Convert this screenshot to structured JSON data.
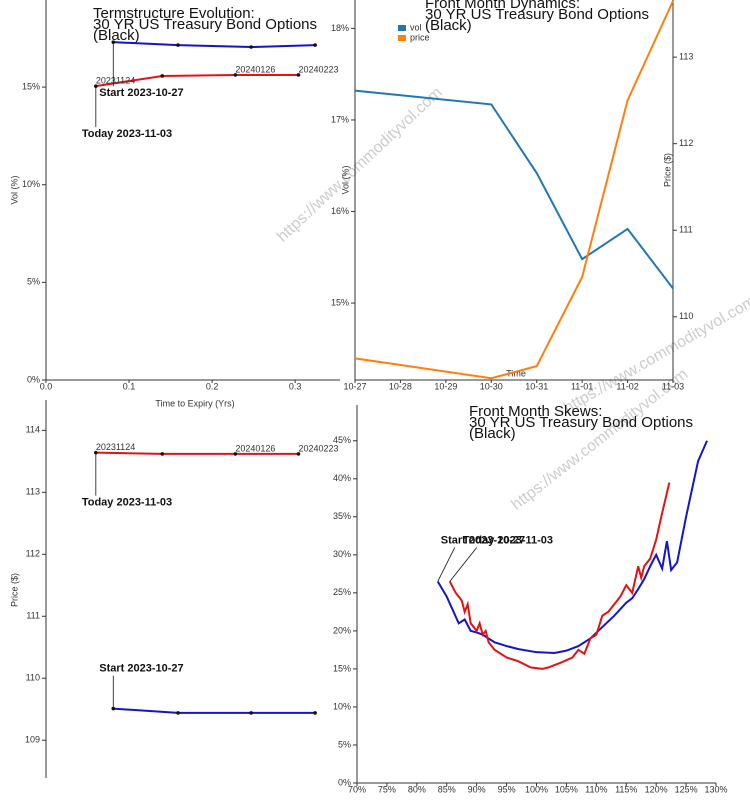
{
  "watermark": "https://www.commodityvol.com",
  "chart_data": [
    {
      "type": "line",
      "title": [
        "Termstructure Evolution:",
        "30 YR US Treasury Bond Options",
        "(Black)"
      ],
      "xlabel": "Time to Expiry (Yrs)",
      "ylabel": "Vol (%)",
      "xlim": [
        0,
        0.354
      ],
      "ylim": [
        0,
        19.46
      ],
      "xticks": [
        {
          "value": 0,
          "label": "0.0"
        },
        0.1,
        0.2,
        0.3
      ],
      "yticks": [
        {
          "value": 0,
          "label": "0%"
        },
        {
          "value": 5,
          "label": "5%"
        },
        {
          "value": 10,
          "label": "10%"
        },
        {
          "value": 15,
          "label": "15%"
        }
      ],
      "markers": true,
      "series": [
        {
          "color": "#1414c8",
          "x": [
            0.081,
            0.159,
            0.247,
            0.324
          ],
          "values": [
            17.3,
            17.15,
            17.05,
            17.15
          ]
        },
        {
          "color": "#e01414",
          "x": [
            0.06,
            0.14,
            0.228,
            0.304
          ],
          "values": [
            15.05,
            15.57,
            15.62,
            15.62
          ],
          "labels": [
            "20231124",
            null,
            "20240126",
            "20240223"
          ]
        }
      ],
      "annotations": [
        {
          "text": "Start 2023-10-27",
          "x": 0.081,
          "y": 17.3
        },
        {
          "text": "Today 2023-11-03",
          "x": 0.06,
          "y": 15.05
        }
      ]
    },
    {
      "type": "line",
      "title": [
        "Front Month Dynamics:",
        "30 YR US Treasury Bond Options",
        "(Black)"
      ],
      "xlabel": "Time",
      "ylabel": "Vol (%)",
      "y2label": "Price ($)",
      "xticks": [
        "10-27",
        "10-28",
        "10-29",
        "10-30",
        "10-31",
        "11-01",
        "11-02",
        "11-03"
      ],
      "x": [
        "10-27",
        "10-30",
        "10-31",
        "11-01",
        "11-02",
        "11-03"
      ],
      "ylim": [
        14.16,
        18.31
      ],
      "y2lim": [
        109.27,
        113.66
      ],
      "yticks": [
        {
          "value": 15,
          "label": "15%"
        },
        {
          "value": 16,
          "label": "16%"
        },
        {
          "value": 17,
          "label": "17%"
        },
        {
          "value": 18,
          "label": "18%"
        }
      ],
      "y2ticks": [
        110,
        111,
        112,
        113
      ],
      "legend": "upper left",
      "series": [
        {
          "name": "vol",
          "color": "#1f77b4",
          "values": [
            17.32,
            17.17,
            16.42,
            15.48,
            15.81,
            15.16
          ]
        },
        {
          "name": "price",
          "color": "#ff7f0e",
          "axis": "y2",
          "values": [
            109.52,
            109.29,
            109.43,
            110.46,
            112.5,
            113.65
          ]
        }
      ]
    },
    {
      "type": "line",
      "ylabel": "Price ($)",
      "xlim": [
        0,
        0.354
      ],
      "ylim": [
        108.39,
        114.49
      ],
      "yticks": [
        109,
        110,
        111,
        112,
        113,
        114
      ],
      "markers": true,
      "series": [
        {
          "color": "#e01414",
          "x": [
            0.06,
            0.14,
            0.228,
            0.304
          ],
          "values": [
            113.64,
            113.62,
            113.62,
            113.62
          ],
          "labels": [
            "20231124",
            null,
            "20240126",
            "20240223"
          ]
        },
        {
          "color": "#1414c8",
          "x": [
            0.081,
            0.159,
            0.247,
            0.324
          ],
          "values": [
            109.51,
            109.44,
            109.44,
            109.44
          ]
        }
      ],
      "annotations": [
        {
          "text": "Start 2023-10-27",
          "x": 0.081,
          "y": 109.51
        },
        {
          "text": "Today 2023-11-03",
          "x": 0.06,
          "y": 113.64
        }
      ]
    },
    {
      "type": "line",
      "title": [
        "Front Month Skews:",
        "30 YR US Treasury Bond Options",
        "(Black)"
      ],
      "xlim": [
        70,
        130
      ],
      "ylim": [
        0,
        49.7
      ],
      "xticks": [
        {
          "value": 70,
          "label": "70%"
        },
        {
          "value": 75,
          "label": "75%"
        },
        {
          "value": 80,
          "label": "80%"
        },
        {
          "value": 85,
          "label": "85%"
        },
        {
          "value": 90,
          "label": "90%"
        },
        {
          "value": 95,
          "label": "95%"
        },
        {
          "value": 100,
          "label": "100%"
        },
        {
          "value": 105,
          "label": "105%"
        },
        {
          "value": 110,
          "label": "110%"
        },
        {
          "value": 115,
          "label": "115%"
        },
        {
          "value": 120,
          "label": "120%"
        },
        {
          "value": 125,
          "label": "125%"
        },
        {
          "value": 130,
          "label": "130%"
        }
      ],
      "yticks": [
        {
          "value": 0,
          "label": "0%"
        },
        {
          "value": 5,
          "label": "5%"
        },
        {
          "value": 10,
          "label": "10%"
        },
        {
          "value": 15,
          "label": "15%"
        },
        {
          "value": 20,
          "label": "20%"
        },
        {
          "value": 25,
          "label": "25%"
        },
        {
          "value": 30,
          "label": "30%"
        },
        {
          "value": 35,
          "label": "35%"
        },
        {
          "value": 40,
          "label": "40%"
        },
        {
          "value": 45,
          "label": "45%"
        }
      ],
      "series": [
        {
          "color": "#1414c8",
          "x": [
            83.5,
            85,
            87,
            88,
            89,
            90,
            91,
            93,
            95,
            97,
            100,
            103,
            105,
            107,
            109,
            111,
            113,
            115,
            116,
            117,
            118,
            119,
            120,
            121,
            121.8,
            122.5,
            123.5,
            125,
            127,
            128.5
          ],
          "values": [
            26.5,
            24.5,
            21,
            21.5,
            20,
            19.8,
            19.5,
            18.5,
            18,
            17.6,
            17.2,
            17.1,
            17.4,
            18,
            19,
            20.5,
            22,
            23.7,
            24.3,
            25.5,
            26.8,
            28.5,
            30,
            28.2,
            31.8,
            28,
            29,
            35,
            42.3,
            45
          ]
        },
        {
          "color": "#e01414",
          "x": [
            85.5,
            86.5,
            87.5,
            88,
            88.5,
            89,
            90,
            90.5,
            91,
            91.5,
            92,
            93,
            95,
            97,
            99,
            101,
            102,
            104,
            106,
            107,
            108,
            109,
            110,
            111,
            112,
            114,
            115,
            116,
            117,
            117.5,
            118,
            119,
            120,
            121,
            122.2
          ],
          "values": [
            26.5,
            25,
            24,
            22.5,
            23.5,
            21,
            20,
            21,
            19.5,
            20,
            18.5,
            17.5,
            16.5,
            16,
            15.2,
            15,
            15.2,
            15.8,
            16.5,
            17.5,
            17,
            19,
            19.5,
            22,
            22.5,
            24.5,
            26,
            25,
            28.5,
            27,
            28.5,
            29.5,
            32,
            35.5,
            39.5
          ]
        }
      ],
      "annotations": [
        {
          "text": "Start 2023-10-27",
          "x": 83.5,
          "y": 26.5
        },
        {
          "text": "Today 2023-11-03",
          "x": 85.5,
          "y": 26.5
        }
      ]
    }
  ]
}
